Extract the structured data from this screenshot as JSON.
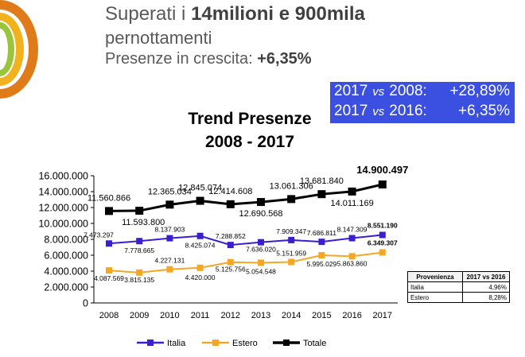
{
  "header": {
    "line1_prefix": "Superati i ",
    "line1_bold": "14milioni e 900mila",
    "line2": "pernottamenti",
    "line3_prefix": "Presenze in crescita: ",
    "line3_bold": "+6,35%"
  },
  "comparison": [
    {
      "year_a": "2017",
      "vs": "vs",
      "year_b": "2008:",
      "value": "+28,89%"
    },
    {
      "year_a": "2017",
      "vs": "vs",
      "year_b": "2016:",
      "value": "+6,35%"
    }
  ],
  "growth_table": {
    "headers": [
      "Provenienza",
      "2017 vs 2016"
    ],
    "rows": [
      [
        "Italia",
        "4,96%"
      ],
      [
        "Estero",
        "8,28%"
      ]
    ]
  },
  "colors": {
    "italia": "#3a1fcf",
    "estero": "#f5a623",
    "totale": "#000000",
    "banner": "#3b4fe0"
  },
  "chart_data": {
    "type": "line",
    "title": [
      "Trend Presenze",
      "2008 - 2017"
    ],
    "xlabel": "",
    "ylabel": "",
    "categories": [
      "2008",
      "2009",
      "2010",
      "2011",
      "2012",
      "2013",
      "2014",
      "2015",
      "2016",
      "2017"
    ],
    "ylim": [
      0,
      16000000
    ],
    "yticks": [
      0,
      2000000,
      4000000,
      6000000,
      8000000,
      10000000,
      12000000,
      14000000,
      16000000
    ],
    "ytick_labels": [
      "0",
      "2.000.000",
      "4.000.000",
      "6.000.000",
      "8.000.000",
      "10.000.000",
      "12.000.000",
      "14.000.000",
      "16.000.000"
    ],
    "grid": false,
    "legend": "bottom",
    "series": [
      {
        "name": "Italia",
        "values": [
          7473297,
          7778665,
          8137903,
          8425074,
          7288852,
          7636020,
          7909347,
          7686811,
          8147309,
          8551190
        ],
        "labels": [
          "7.473.297",
          "7.778.665",
          "8.137.903",
          "8.425.074",
          "7.288.852",
          "7.636.020",
          "7.909.347",
          "7.686.811",
          "8.147.309",
          "8.551.190"
        ]
      },
      {
        "name": "Estero",
        "values": [
          4087569,
          3815135,
          4227131,
          4420000,
          5125756,
          5054548,
          5151959,
          5995029,
          5863860,
          6349307
        ],
        "labels": [
          "4.087.569",
          "3.815.135",
          "4.227.131",
          "4.420.000",
          "5.125.756",
          "5.054.548",
          "5.151.959",
          "5.995.029",
          "5.863.860",
          "6.349.307"
        ]
      },
      {
        "name": "Totale",
        "values": [
          11560866,
          11593800,
          12365034,
          12845074,
          12414608,
          12690568,
          13061306,
          13681840,
          14011169,
          14900497
        ],
        "labels": [
          "11.560.866",
          "11.593.800",
          "12.365.034",
          "12.845.074",
          "12.414.608",
          "12.690.568",
          "13.061.306",
          "13.681.840",
          "14.011.169",
          "14.900.497"
        ]
      }
    ]
  }
}
